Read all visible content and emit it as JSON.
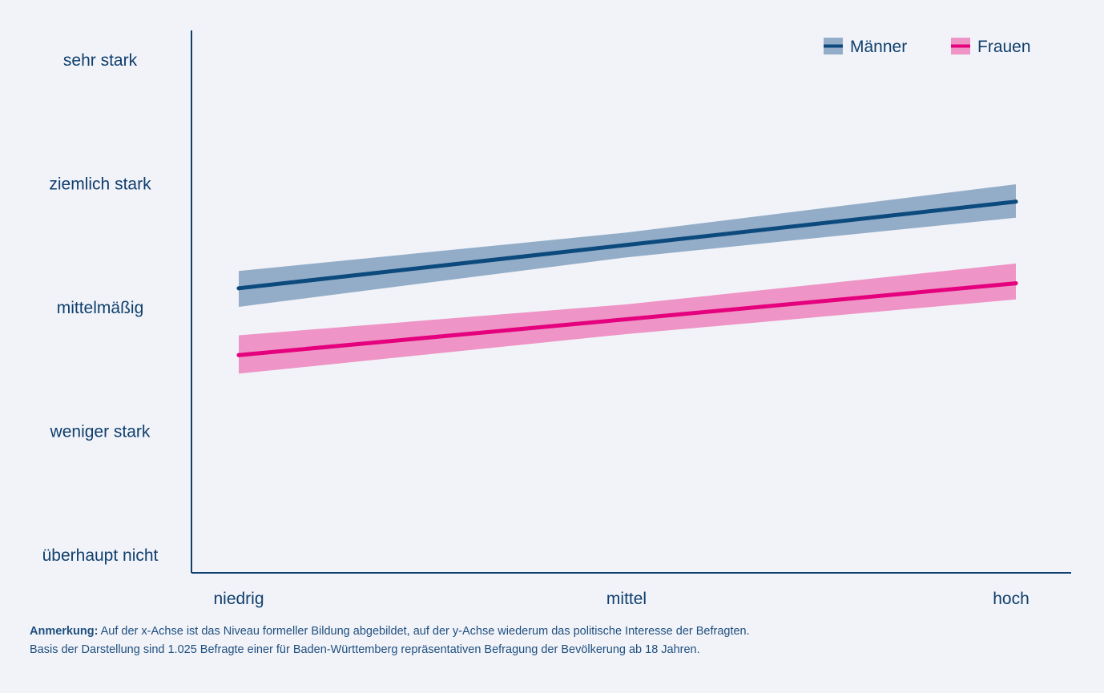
{
  "chart_data": {
    "type": "line",
    "categories": [
      "niedrig",
      "mittel",
      "hoch"
    ],
    "y_categories": [
      "überhaupt nicht",
      "weniger stark",
      "mittelmäßig",
      "ziemlich stark",
      "sehr stark"
    ],
    "ylim": [
      1,
      5
    ],
    "legend_position": "top-right",
    "grid": false,
    "series": [
      {
        "name": "Männer",
        "color": "#0c4a7e",
        "band_color": "#93adc8",
        "values": [
          3.15,
          3.5,
          3.85
        ],
        "lower": [
          3.0,
          3.4,
          3.72
        ],
        "upper": [
          3.29,
          3.6,
          3.99
        ]
      },
      {
        "name": "Frauen",
        "color": "#e5007d",
        "band_color": "#ee94c6",
        "values": [
          2.61,
          2.9,
          3.19
        ],
        "lower": [
          2.46,
          2.78,
          3.06
        ],
        "upper": [
          2.77,
          3.02,
          3.35
        ]
      }
    ]
  },
  "note": {
    "label": "Anmerkung:",
    "line1": "Auf der x-Achse ist das Niveau formeller Bildung abgebildet, auf der y-Achse wiederum das politische Interesse der Befragten.",
    "line2": "Basis der Darstellung sind 1.025 Befragte einer für Baden-Württemberg repräsentativen Befragung der Bevölkerung ab 18 Jahren."
  }
}
